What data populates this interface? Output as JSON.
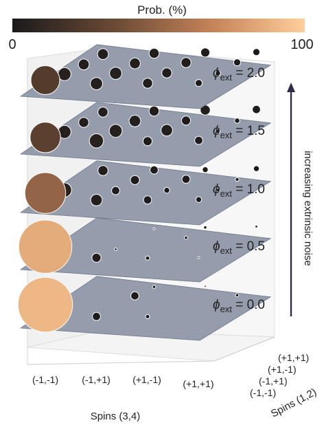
{
  "chart_data": {
    "type": "scatter",
    "colorbar": {
      "title": "Prob. (%)",
      "min_label": "0",
      "max_label": "100",
      "range": [
        0,
        100
      ],
      "colormap": "copper",
      "color_low": "#1a1a1a",
      "color_high": "#ffcf9c"
    },
    "x_axis": {
      "label": "Spins (3,4)",
      "categories": [
        "(-1,-1)",
        "(-1,+1)",
        "(+1,-1)",
        "(+1,+1)"
      ]
    },
    "y_axis": {
      "label": "Spins (1,2)",
      "categories": [
        "(-1,-1)",
        "(-1,+1)",
        "(+1,-1)",
        "(+1,+1)"
      ]
    },
    "arrow_label": "increasing extrinsic noise",
    "layer_label_prefix": "ϕ",
    "layer_label_subscript": "ext",
    "layers": [
      {
        "phi": "0.0",
        "points": [
          {
            "x": 0,
            "y": 0,
            "prob": 90
          },
          {
            "x": 0,
            "y": 1,
            "prob": 5
          },
          {
            "x": 1,
            "y": 0,
            "prob": 2
          },
          {
            "x": 1,
            "y": 2,
            "prob": 2
          },
          {
            "x": 1,
            "y": 3,
            "prob": 0.3
          },
          {
            "x": 2,
            "y": 0,
            "prob": 0.5
          },
          {
            "x": 2,
            "y": 3,
            "prob": 0.1
          },
          {
            "x": 3,
            "y": 2,
            "prob": 0.3
          }
        ]
      },
      {
        "phi": "0.5",
        "points": [
          {
            "x": 0,
            "y": 0,
            "prob": 85
          },
          {
            "x": 0,
            "y": 1,
            "prob": 6
          },
          {
            "x": 1,
            "y": 0,
            "prob": 2.5
          },
          {
            "x": 1,
            "y": 1,
            "prob": 0.2
          },
          {
            "x": 1,
            "y": 3,
            "prob": 0.1
          },
          {
            "x": 2,
            "y": 0,
            "prob": 0.5
          },
          {
            "x": 2,
            "y": 2,
            "prob": 0.3
          },
          {
            "x": 2,
            "y": 3,
            "prob": 0.3
          },
          {
            "x": 3,
            "y": 0,
            "prob": 0.1
          },
          {
            "x": 3,
            "y": 3,
            "prob": 0.2
          }
        ]
      },
      {
        "phi": "1.0",
        "points": [
          {
            "x": 0,
            "y": 0,
            "prob": 50
          },
          {
            "x": 0,
            "y": 1,
            "prob": 6
          },
          {
            "x": 0,
            "y": 3,
            "prob": 3
          },
          {
            "x": 1,
            "y": 0,
            "prob": 4
          },
          {
            "x": 1,
            "y": 1,
            "prob": 2
          },
          {
            "x": 1,
            "y": 2,
            "prob": 2.5
          },
          {
            "x": 1,
            "y": 3,
            "prob": 2
          },
          {
            "x": 2,
            "y": 0,
            "prob": 2
          },
          {
            "x": 2,
            "y": 1,
            "prob": 1
          },
          {
            "x": 2,
            "y": 2,
            "prob": 2
          },
          {
            "x": 2,
            "y": 3,
            "prob": 1
          },
          {
            "x": 3,
            "y": 0,
            "prob": 1
          },
          {
            "x": 3,
            "y": 1,
            "prob": 0.3
          },
          {
            "x": 3,
            "y": 2,
            "prob": 0.4
          },
          {
            "x": 3,
            "y": 3,
            "prob": 1
          }
        ]
      },
      {
        "phi": "1.5",
        "points": [
          {
            "x": 0,
            "y": 0,
            "prob": 28
          },
          {
            "x": 0,
            "y": 1,
            "prob": 5
          },
          {
            "x": 0,
            "y": 2,
            "prob": 3
          },
          {
            "x": 0,
            "y": 3,
            "prob": 3
          },
          {
            "x": 1,
            "y": 0,
            "prob": 6
          },
          {
            "x": 1,
            "y": 1,
            "prob": 5
          },
          {
            "x": 1,
            "y": 2,
            "prob": 4
          },
          {
            "x": 1,
            "y": 3,
            "prob": 3
          },
          {
            "x": 2,
            "y": 0,
            "prob": 2.5
          },
          {
            "x": 2,
            "y": 1,
            "prob": 4
          },
          {
            "x": 2,
            "y": 2,
            "prob": 2.5
          },
          {
            "x": 2,
            "y": 3,
            "prob": 3
          },
          {
            "x": 3,
            "y": 0,
            "prob": 2
          },
          {
            "x": 3,
            "y": 1,
            "prob": 0.5
          },
          {
            "x": 3,
            "y": 2,
            "prob": 0.8
          },
          {
            "x": 3,
            "y": 3,
            "prob": 2
          }
        ]
      },
      {
        "phi": "2.0",
        "points": [
          {
            "x": 0,
            "y": 0,
            "prob": 25
          },
          {
            "x": 0,
            "y": 1,
            "prob": 5
          },
          {
            "x": 0,
            "y": 2,
            "prob": 3.5
          },
          {
            "x": 0,
            "y": 3,
            "prob": 3.5
          },
          {
            "x": 1,
            "y": 0,
            "prob": 4.5
          },
          {
            "x": 1,
            "y": 1,
            "prob": 4.5
          },
          {
            "x": 1,
            "y": 2,
            "prob": 3.5
          },
          {
            "x": 1,
            "y": 3,
            "prob": 3
          },
          {
            "x": 2,
            "y": 0,
            "prob": 3
          },
          {
            "x": 2,
            "y": 1,
            "prob": 3
          },
          {
            "x": 2,
            "y": 2,
            "prob": 3
          },
          {
            "x": 2,
            "y": 3,
            "prob": 2.5
          },
          {
            "x": 3,
            "y": 0,
            "prob": 1.5
          },
          {
            "x": 3,
            "y": 1,
            "prob": 0.8
          },
          {
            "x": 3,
            "y": 2,
            "prob": 1.5
          },
          {
            "x": 3,
            "y": 3,
            "prob": 1.5
          }
        ]
      }
    ]
  }
}
